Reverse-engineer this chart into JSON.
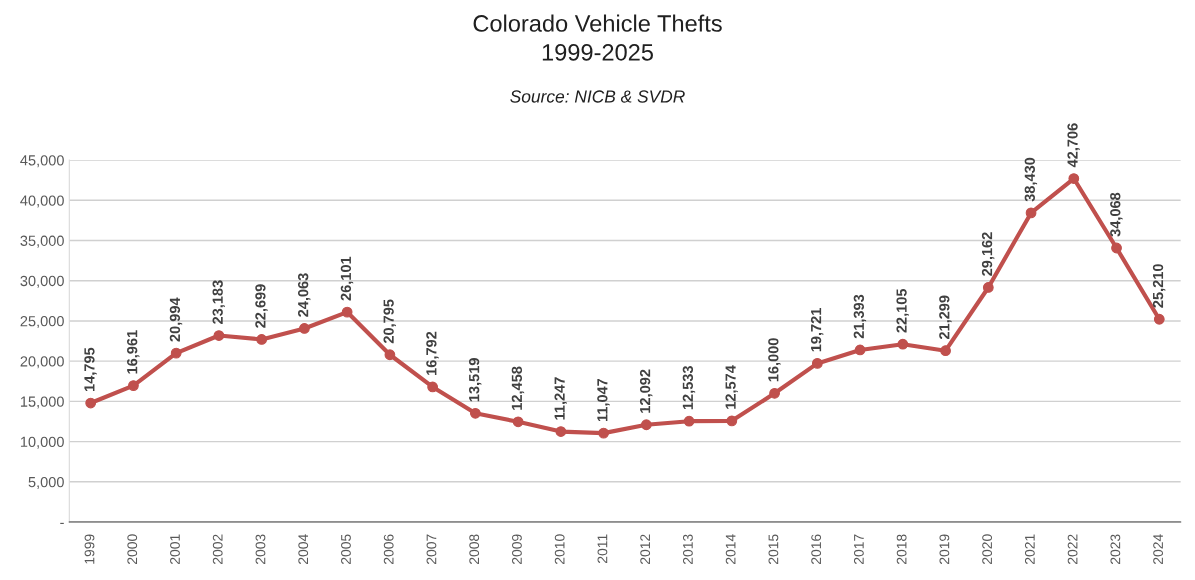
{
  "chart_data": {
    "type": "line",
    "title": "Colorado Vehicle Thefts\n1999-2025",
    "subtitle": "Source: NICB & SVDR",
    "categories": [
      "1999",
      "2000",
      "2001",
      "2002",
      "2003",
      "2004",
      "2005",
      "2006",
      "2007",
      "2008",
      "2009",
      "2010",
      "2011",
      "2012",
      "2013",
      "2014",
      "2015",
      "2016",
      "2017",
      "2018",
      "2019",
      "2020",
      "2021",
      "2022",
      "2023",
      "2024"
    ],
    "series": [
      {
        "color": "#c0504d",
        "values": [
          14795,
          16961,
          20994,
          23183,
          22699,
          24063,
          26101,
          20795,
          16792,
          13519,
          12458,
          11247,
          11047,
          12092,
          12533,
          12574,
          16000,
          19721,
          21393,
          22105,
          21299,
          29162,
          38430,
          42706,
          34068,
          25210
        ],
        "value_labels": [
          "14,795",
          "16,961",
          "20,994",
          "23,183",
          "22,699",
          "24,063",
          "26,101",
          "20,795",
          "16,792",
          "13,519",
          "12,458",
          "11,247",
          "11,047",
          "12,092",
          "12,533",
          "12,574",
          "16,000",
          "19,721",
          "21,393",
          "22,105",
          "21,299",
          "29,162",
          "38,430",
          "42,706",
          "34,068",
          "25,210"
        ]
      }
    ],
    "ylim": [
      0,
      45000
    ],
    "yticks": [
      {
        "value": 0,
        "label": "-"
      },
      {
        "value": 5000,
        "label": "5,000"
      },
      {
        "value": 10000,
        "label": "10,000"
      },
      {
        "value": 15000,
        "label": "15,000"
      },
      {
        "value": 20000,
        "label": "20,000"
      },
      {
        "value": 25000,
        "label": "25,000"
      },
      {
        "value": 30000,
        "label": "30,000"
      },
      {
        "value": 35000,
        "label": "35,000"
      },
      {
        "value": 40000,
        "label": "40,000"
      },
      {
        "value": 45000,
        "label": "45,000"
      }
    ],
    "grid": "y",
    "marker": "circle",
    "line_style": "solid",
    "legend": false
  }
}
